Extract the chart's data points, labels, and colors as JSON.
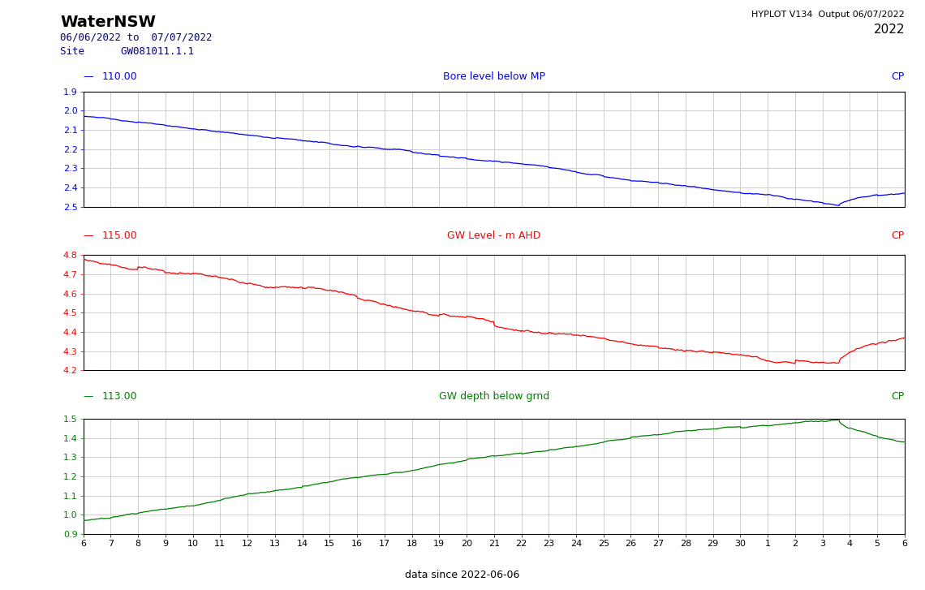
{
  "title": "WaterNSW",
  "subtitle_date": "06/06/2022 to  07/07/2022",
  "subtitle_site": "Site      GW081011.1.1",
  "hyplot_text": "HYPLOT V134  Output 06/07/2022",
  "year_text": "2022",
  "footer_text": "data since 2022-06-06",
  "plot1": {
    "label_value": "110.00",
    "label_title": "Bore level below MP",
    "label_right": "CP",
    "color": "#0000ff",
    "ylim": [
      1.9,
      2.5
    ],
    "yticks": [
      1.9,
      2.0,
      2.1,
      2.2,
      2.3,
      2.4,
      2.5
    ],
    "ystart": 2.03,
    "ymid": 2.27,
    "yflat": 2.5,
    "yend": 2.43,
    "invert": true
  },
  "plot2": {
    "label_value": "115.00",
    "label_title": "GW Level - m AHD",
    "label_right": "CP",
    "color": "#ff0000",
    "ylim": [
      4.2,
      4.8
    ],
    "yticks": [
      4.2,
      4.3,
      4.4,
      4.5,
      4.6,
      4.7,
      4.8
    ],
    "ystart": 4.78,
    "ymid": 4.46,
    "yflat": 4.235,
    "yend": 4.37,
    "invert": false
  },
  "plot3": {
    "label_value": "113.00",
    "label_title": "GW depth below grnd",
    "label_right": "CP",
    "color": "#008000",
    "ylim": [
      0.9,
      1.5
    ],
    "yticks": [
      0.9,
      1.0,
      1.1,
      1.2,
      1.3,
      1.4,
      1.5
    ],
    "ystart": 0.97,
    "ymid": 1.28,
    "yflat": 1.49,
    "yend": 1.38,
    "invert": false
  },
  "xtick_labels": [
    "6",
    "7",
    "8",
    "9",
    "10",
    "11",
    "12",
    "13",
    "14",
    "15",
    "16",
    "17",
    "18",
    "19",
    "20",
    "21",
    "22",
    "23",
    "24",
    "25",
    "26",
    "27",
    "28",
    "29",
    "30",
    "1",
    "2",
    "3",
    "4",
    "5",
    "6"
  ],
  "n_points": 1440,
  "background_color": "#ffffff",
  "grid_color": "#c8c8c8",
  "label_color_blue": "#0000ff",
  "label_color_red": "#ff0000",
  "label_color_green": "#008000"
}
